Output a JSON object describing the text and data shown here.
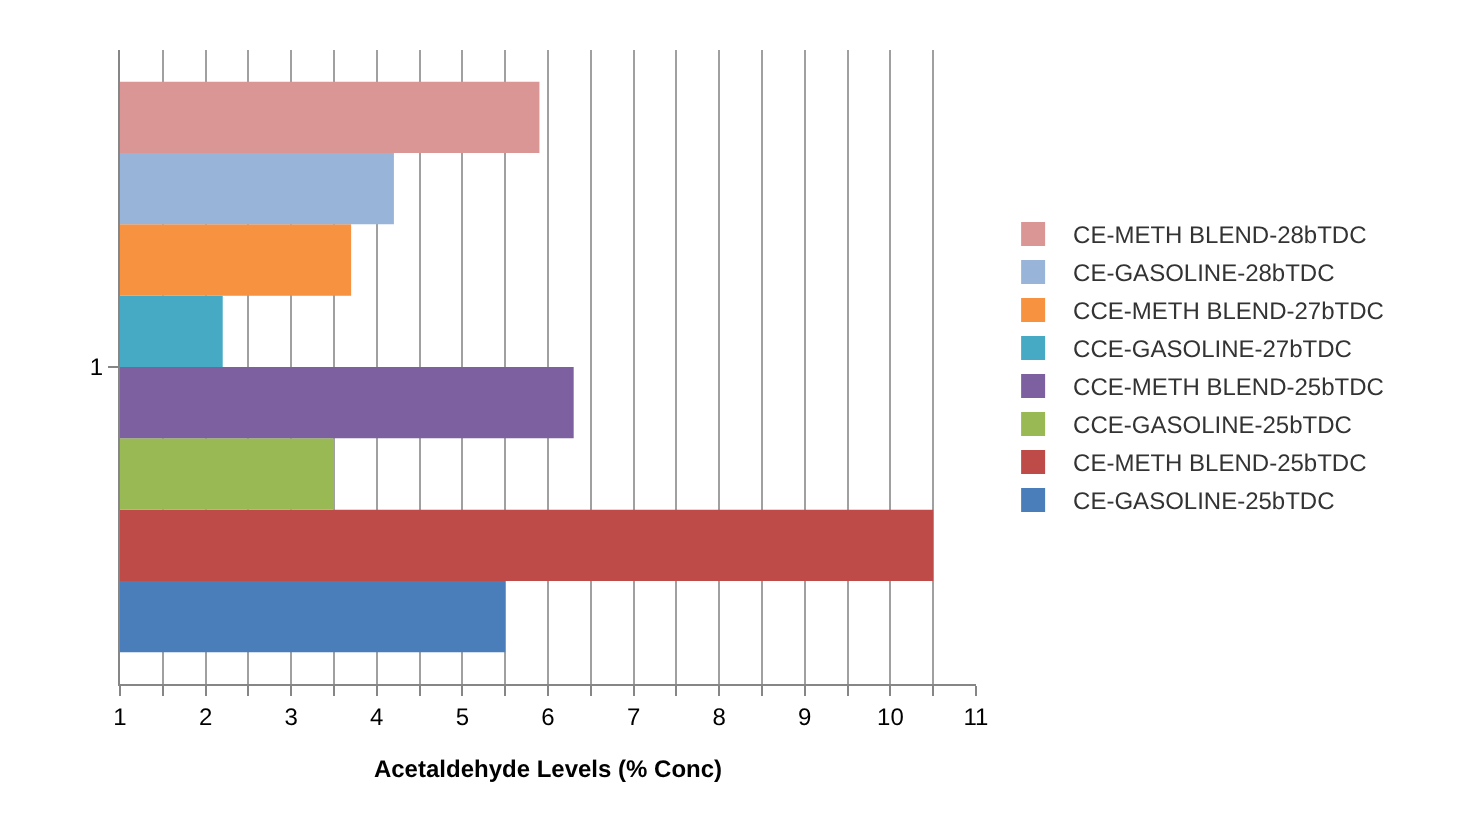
{
  "chart_data": {
    "type": "bar",
    "orientation": "horizontal",
    "xlabel": "Acetaldehyde Levels (% Conc)",
    "categories": [
      "1"
    ],
    "series": [
      {
        "name": "CE-GASOLINE-25bTDC",
        "color": "#4a7ebb",
        "values": [
          5.5
        ]
      },
      {
        "name": "CE-METH BLEND-25bTDC",
        "color": "#be4b48",
        "values": [
          10.5
        ]
      },
      {
        "name": "CCE-GASOLINE-25bTDC",
        "color": "#98b954",
        "values": [
          3.5
        ]
      },
      {
        "name": "CCE-METH BLEND-25bTDC",
        "color": "#7d60a0",
        "values": [
          6.3
        ]
      },
      {
        "name": "CCE-GASOLINE-27bTDC",
        "color": "#46aac5",
        "values": [
          2.2
        ]
      },
      {
        "name": "CCE-METH BLEND-27bTDC",
        "color": "#f69240",
        "values": [
          3.7
        ]
      },
      {
        "name": "CE-GASOLINE-28bTDC",
        "color": "#98b5d9",
        "values": [
          4.2
        ]
      },
      {
        "name": "CE-METH BLEND-28bTDC",
        "color": "#d99694",
        "values": [
          5.9
        ]
      }
    ],
    "xlim": [
      1,
      11
    ],
    "xticks": [
      1,
      {
        "value": 1.5,
        "label": null
      },
      2,
      {
        "value": 2.5,
        "label": null
      },
      3,
      {
        "value": 3.5,
        "label": null
      },
      4,
      {
        "value": 4.5,
        "label": null
      },
      5,
      {
        "value": 5.5,
        "label": null
      },
      6,
      {
        "value": 6.5,
        "label": null
      },
      7,
      {
        "value": 7.5,
        "label": null
      },
      8,
      {
        "value": 8.5,
        "label": null
      },
      9,
      {
        "value": 9.5,
        "label": null
      },
      10,
      {
        "value": 10.5,
        "label": null
      },
      11
    ],
    "grid": "x",
    "legend": "right"
  }
}
